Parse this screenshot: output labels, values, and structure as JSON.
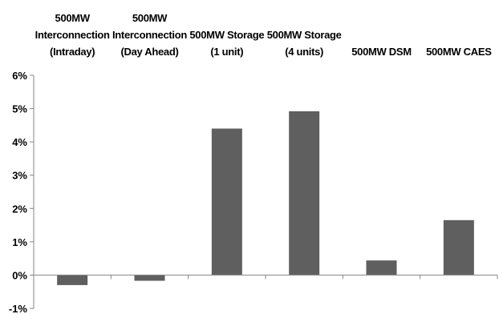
{
  "chart_data": {
    "type": "bar",
    "categories": [
      [
        "500MW",
        "Interconnection",
        "(Intraday)"
      ],
      [
        "500MW",
        "Interconnection",
        "(Day Ahead)"
      ],
      [
        "500MW Storage",
        "(1 unit)"
      ],
      [
        "500MW Storage",
        "(4 units)"
      ],
      [
        "500MW DSM"
      ],
      [
        "500MW CAES"
      ]
    ],
    "values": [
      -0.3,
      -0.17,
      4.4,
      4.92,
      0.44,
      1.65
    ],
    "title": "",
    "xlabel": "",
    "ylabel": "",
    "ylim": [
      -1,
      6
    ],
    "yticks": [
      -1,
      0,
      1,
      2,
      3,
      4,
      5,
      6
    ],
    "ytick_labels": [
      "-1%",
      "0%",
      "1%",
      "2%",
      "3%",
      "4%",
      "5%",
      "6%"
    ],
    "bar_color": "#5f5f5f",
    "axis_color": "#868686",
    "grid": false,
    "legend": "none"
  }
}
